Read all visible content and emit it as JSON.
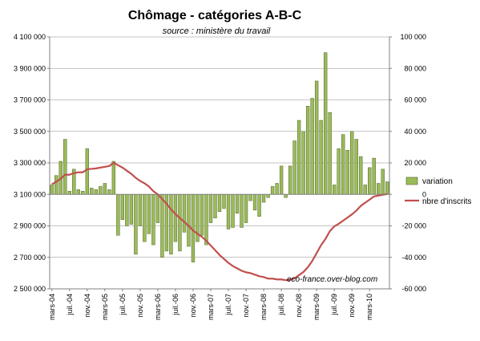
{
  "chart_data": {
    "type": "bar+line",
    "title": "Chômage - catégories A-B-C",
    "subtitle": "source : ministère du travail",
    "watermark": "eco-france.over-blog.com",
    "left_axis": {
      "min": 2500000,
      "max": 4100000,
      "step": 200000,
      "tick_labels": [
        "2 500 000",
        "2 700 000",
        "2 900 000",
        "3 100 000",
        "3 300 000",
        "3 500 000",
        "3 700 000",
        "3 900 000",
        "4 100 000"
      ]
    },
    "right_axis": {
      "min": -60000,
      "max": 100000,
      "step": 20000,
      "tick_labels": [
        "-60 000",
        "-40 000",
        "-20 000",
        "0",
        "20 000",
        "40 000",
        "60 000",
        "80 000",
        "100 000"
      ]
    },
    "x_tick_labels": [
      "mars-04",
      "juil.-04",
      "nov.-04",
      "mars-05",
      "juil.-05",
      "nov.-05",
      "mars-06",
      "juil.-06",
      "nov.-06",
      "mars-07",
      "juil.-07",
      "nov.-07",
      "mars-08",
      "juil.-08",
      "nov.-08",
      "mars-09",
      "juil.-09",
      "nov.-09",
      "mars-10"
    ],
    "grid": "horizontal",
    "legend_position": "right",
    "series": [
      {
        "name": "variation",
        "kind": "bar",
        "axis": "right",
        "color": "#9bbb59",
        "values": [
          6000,
          12000,
          21000,
          35000,
          2000,
          16000,
          3000,
          2000,
          29000,
          4000,
          3000,
          5000,
          7000,
          3000,
          21000,
          -26000,
          -16000,
          -20000,
          -19000,
          -38000,
          -20000,
          -30000,
          -25000,
          -32000,
          -18000,
          -40000,
          -36000,
          -38000,
          -30000,
          -36000,
          -24000,
          -33000,
          -43000,
          -30000,
          -26000,
          -32000,
          -18000,
          -15000,
          -11000,
          -9000,
          -22000,
          -21000,
          -12000,
          -21000,
          -18000,
          -4000,
          -10000,
          -14000,
          -5000,
          -2000,
          5000,
          7000,
          18000,
          -2000,
          18000,
          34000,
          47000,
          40000,
          56000,
          61000,
          72000,
          47000,
          90000,
          52000,
          6000,
          29000,
          38000,
          28000,
          40000,
          35000,
          24000,
          6000,
          17000,
          23000,
          7000,
          16000,
          8000
        ],
        "line_color": "#c0504d"
      },
      {
        "name": "nbre d'inscrits",
        "kind": "line",
        "axis": "left",
        "color": "#c0504d",
        "values": [
          3165000,
          3180000,
          3200000,
          3225000,
          3225000,
          3235000,
          3240000,
          3240000,
          3260000,
          3262000,
          3265000,
          3270000,
          3275000,
          3280000,
          3300000,
          3285000,
          3270000,
          3250000,
          3230000,
          3205000,
          3185000,
          3170000,
          3150000,
          3120000,
          3100000,
          3070000,
          3040000,
          3005000,
          2975000,
          2950000,
          2925000,
          2900000,
          2870000,
          2850000,
          2830000,
          2805000,
          2775000,
          2745000,
          2715000,
          2690000,
          2665000,
          2645000,
          2630000,
          2615000,
          2605000,
          2600000,
          2590000,
          2580000,
          2575000,
          2565000,
          2565000,
          2560000,
          2560000,
          2555000,
          2557000,
          2567000,
          2587000,
          2607000,
          2637000,
          2677000,
          2727000,
          2777000,
          2817000,
          2867000,
          2897000,
          2913000,
          2933000,
          2953000,
          2973000,
          2997000,
          3027000,
          3047000,
          3067000,
          3087000,
          3092000,
          3098000,
          3102000
        ]
      }
    ],
    "notes_for_line_mapping": ""
  }
}
